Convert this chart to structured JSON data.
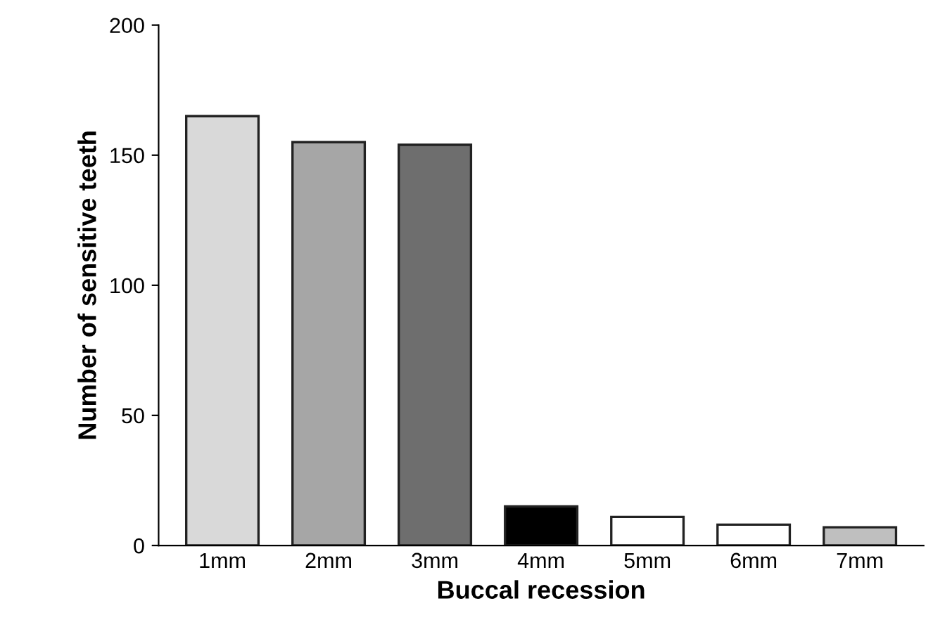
{
  "chart_data": {
    "type": "bar",
    "xlabel": "Buccal recession",
    "ylabel": "Number of sensitive teeth",
    "categories": [
      "1mm",
      "2mm",
      "3mm",
      "4mm",
      "5mm",
      "6mm",
      "7mm"
    ],
    "values": [
      165,
      155,
      154,
      15,
      11,
      8,
      7
    ],
    "colors": [
      "#d9d9d9",
      "#a6a6a6",
      "#6e6e6e",
      "#000000",
      "#ffffff",
      "#ffffff",
      "#bfbfbf"
    ],
    "ylim": [
      0,
      200
    ],
    "yticks": [
      0,
      50,
      100,
      150,
      200
    ],
    "grid": false,
    "legend": false
  }
}
